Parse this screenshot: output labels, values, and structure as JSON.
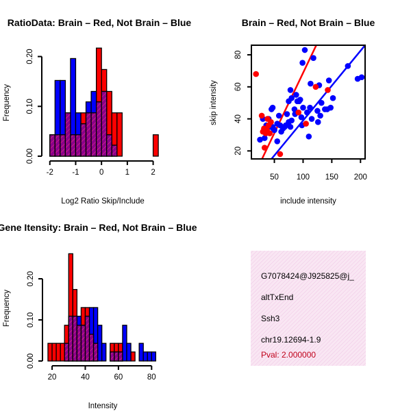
{
  "chart_data": [
    {
      "id": "ratio_hist",
      "type": "bar",
      "title": "RatioData: Brain – Red, Not Brain – Blue",
      "xlabel": "Log2 Ratio Skip/Include",
      "ylabel": "Frequency",
      "xlim": [
        -2.1,
        2.25
      ],
      "ylim": [
        0,
        0.22
      ],
      "xticks": [
        -2,
        -1,
        0,
        1,
        2
      ],
      "yticks": [
        0.0,
        0.1,
        0.2
      ],
      "ytick_labels": [
        "0.00",
        "0.10",
        "0.20"
      ],
      "series": [
        {
          "name": "Brain",
          "color": "#ff0000",
          "bins": [
            {
              "x0": -2.0,
              "x1": -1.8,
              "value": 0.043
            },
            {
              "x0": -1.8,
              "x1": -1.6,
              "value": 0.043
            },
            {
              "x0": -1.6,
              "x1": -1.4,
              "value": 0.043
            },
            {
              "x0": -1.4,
              "x1": -1.2,
              "value": 0.087
            },
            {
              "x0": -1.2,
              "x1": -1.0,
              "value": 0.043
            },
            {
              "x0": -1.0,
              "x1": -0.8,
              "value": 0.043
            },
            {
              "x0": -0.8,
              "x1": -0.6,
              "value": 0.087
            },
            {
              "x0": -0.6,
              "x1": -0.4,
              "value": 0.087
            },
            {
              "x0": -0.4,
              "x1": -0.2,
              "value": 0.087
            },
            {
              "x0": -0.2,
              "x1": 0.0,
              "value": 0.217
            },
            {
              "x0": 0.0,
              "x1": 0.2,
              "value": 0.174
            },
            {
              "x0": 0.2,
              "x1": 0.4,
              "value": 0.13
            },
            {
              "x0": 0.4,
              "x1": 0.6,
              "value": 0.087
            },
            {
              "x0": 0.6,
              "x1": 0.8,
              "value": 0.087
            },
            {
              "x0": 2.0,
              "x1": 2.2,
              "value": 0.043
            }
          ]
        },
        {
          "name": "Not Brain",
          "color": "#0000ff",
          "bins": [
            {
              "x0": -2.0,
              "x1": -1.8,
              "value": 0.043
            },
            {
              "x0": -1.8,
              "x1": -1.6,
              "value": 0.152
            },
            {
              "x0": -1.6,
              "x1": -1.4,
              "value": 0.152
            },
            {
              "x0": -1.4,
              "x1": -1.2,
              "value": 0.087
            },
            {
              "x0": -1.2,
              "x1": -1.0,
              "value": 0.196
            },
            {
              "x0": -1.0,
              "x1": -0.8,
              "value": 0.087
            },
            {
              "x0": -0.8,
              "x1": -0.6,
              "value": 0.065
            },
            {
              "x0": -0.6,
              "x1": -0.4,
              "value": 0.109
            },
            {
              "x0": -0.4,
              "x1": -0.2,
              "value": 0.13
            },
            {
              "x0": -0.2,
              "x1": 0.0,
              "value": 0.109
            },
            {
              "x0": 0.0,
              "x1": 0.2,
              "value": 0.13
            },
            {
              "x0": 0.2,
              "x1": 0.4,
              "value": 0.043
            },
            {
              "x0": 0.4,
              "x1": 0.6,
              "value": 0.022
            },
            {
              "x0": 0.6,
              "x1": 0.8,
              "value": 0.0
            }
          ]
        }
      ]
    },
    {
      "id": "intensity_scatter",
      "type": "scatter",
      "title": "Brain – Red, Not Brain – Blue",
      "xlabel": "include intensity",
      "ylabel": "skip intensity",
      "xlim": [
        10,
        208
      ],
      "ylim": [
        15,
        86
      ],
      "xticks": [
        50,
        100,
        150,
        200
      ],
      "yticks": [
        20,
        40,
        60,
        80
      ],
      "series": [
        {
          "name": "Brain",
          "color": "#ff0000",
          "points": [
            [
              18,
              68
            ],
            [
              28,
              42
            ],
            [
              30,
              32
            ],
            [
              32,
              34
            ],
            [
              33,
              22
            ],
            [
              35,
              31
            ],
            [
              37,
              33
            ],
            [
              38,
              40
            ],
            [
              40,
              36
            ],
            [
              42,
              31
            ],
            [
              44,
              38
            ],
            [
              60,
              18
            ],
            [
              92,
              44
            ],
            [
              105,
              37
            ],
            [
              122,
              60
            ],
            [
              143,
              58
            ]
          ],
          "fit": {
            "x0": 28.5,
            "y0": 15,
            "x1": 123,
            "y1": 86
          }
        },
        {
          "name": "Not Brain",
          "color": "#0000ff",
          "points": [
            [
              25,
              27
            ],
            [
              30,
              40
            ],
            [
              33,
              28
            ],
            [
              35,
              31
            ],
            [
              36,
              36
            ],
            [
              40,
              40
            ],
            [
              42,
              35
            ],
            [
              45,
              46
            ],
            [
              47,
              47
            ],
            [
              47,
              35
            ],
            [
              48,
              34
            ],
            [
              50,
              33
            ],
            [
              55,
              26
            ],
            [
              55,
              37
            ],
            [
              58,
              42
            ],
            [
              60,
              36
            ],
            [
              62,
              32
            ],
            [
              65,
              34
            ],
            [
              68,
              35
            ],
            [
              70,
              36
            ],
            [
              72,
              43
            ],
            [
              75,
              38
            ],
            [
              75,
              51
            ],
            [
              78,
              35
            ],
            [
              78,
              58
            ],
            [
              80,
              39
            ],
            [
              80,
              53
            ],
            [
              85,
              46
            ],
            [
              86,
              43
            ],
            [
              88,
              55
            ],
            [
              90,
              51
            ],
            [
              93,
              51
            ],
            [
              95,
              52
            ],
            [
              97,
              41
            ],
            [
              98,
              36
            ],
            [
              99,
              75
            ],
            [
              100,
              47
            ],
            [
              103,
              83
            ],
            [
              107,
              44
            ],
            [
              110,
              29
            ],
            [
              112,
              47
            ],
            [
              113,
              62
            ],
            [
              115,
              40
            ],
            [
              118,
              78
            ],
            [
              125,
              45
            ],
            [
              126,
              38
            ],
            [
              128,
              61
            ],
            [
              130,
              42
            ],
            [
              132,
              50
            ],
            [
              138,
              46
            ],
            [
              142,
              46
            ],
            [
              145,
              64
            ],
            [
              148,
              47
            ],
            [
              152,
              53
            ],
            [
              178,
              73
            ],
            [
              195,
              65
            ],
            [
              202,
              66
            ]
          ],
          "fit": {
            "x0": 45,
            "y0": 15,
            "x1": 208,
            "y1": 86
          }
        }
      ]
    },
    {
      "id": "intensity_hist",
      "type": "bar",
      "title": "Gene Itensity: Brain – Red, Not Brain – Blue",
      "xlabel": "Intensity",
      "ylabel": "Frequency",
      "xlim": [
        17.5,
        84
      ],
      "ylim": [
        0,
        0.26
      ],
      "xticks": [
        20,
        40,
        60,
        80
      ],
      "yticks": [
        0.0,
        0.1,
        0.2
      ],
      "ytick_labels": [
        "0.00",
        "0.10",
        "0.20"
      ],
      "series": [
        {
          "name": "Brain",
          "color": "#ff0000",
          "bins": [
            {
              "x0": 17.5,
              "x1": 20,
              "value": 0.043
            },
            {
              "x0": 20,
              "x1": 22.5,
              "value": 0.043
            },
            {
              "x0": 22.5,
              "x1": 25,
              "value": 0.043
            },
            {
              "x0": 25,
              "x1": 27.5,
              "value": 0.043
            },
            {
              "x0": 27.5,
              "x1": 30,
              "value": 0.087
            },
            {
              "x0": 30,
              "x1": 32.5,
              "value": 0.261
            },
            {
              "x0": 32.5,
              "x1": 35,
              "value": 0.174
            },
            {
              "x0": 35,
              "x1": 37.5,
              "value": 0.087
            },
            {
              "x0": 37.5,
              "x1": 40,
              "value": 0.13
            },
            {
              "x0": 40,
              "x1": 42.5,
              "value": 0.13
            },
            {
              "x0": 42.5,
              "x1": 45,
              "value": 0.065
            },
            {
              "x0": 45,
              "x1": 47.5,
              "value": 0.043
            },
            {
              "x0": 55,
              "x1": 57.5,
              "value": 0.043
            },
            {
              "x0": 57.5,
              "x1": 60,
              "value": 0.043
            },
            {
              "x0": 60,
              "x1": 62.5,
              "value": 0.043
            },
            {
              "x0": 67.5,
              "x1": 70,
              "value": 0.022
            }
          ]
        },
        {
          "name": "Not Brain",
          "color": "#0000ff",
          "bins": [
            {
              "x0": 17.5,
              "x1": 20,
              "value": 0.0
            },
            {
              "x0": 20,
              "x1": 22.5,
              "value": 0.0
            },
            {
              "x0": 22.5,
              "x1": 25,
              "value": 0.0
            },
            {
              "x0": 25,
              "x1": 27.5,
              "value": 0.0
            },
            {
              "x0": 27.5,
              "x1": 30,
              "value": 0.043
            },
            {
              "x0": 30,
              "x1": 32.5,
              "value": 0.109
            },
            {
              "x0": 32.5,
              "x1": 35,
              "value": 0.109
            },
            {
              "x0": 35,
              "x1": 37.5,
              "value": 0.109
            },
            {
              "x0": 37.5,
              "x1": 40,
              "value": 0.087
            },
            {
              "x0": 40,
              "x1": 42.5,
              "value": 0.109
            },
            {
              "x0": 42.5,
              "x1": 45,
              "value": 0.13
            },
            {
              "x0": 45,
              "x1": 47.5,
              "value": 0.13
            },
            {
              "x0": 47.5,
              "x1": 50,
              "value": 0.087
            },
            {
              "x0": 50,
              "x1": 52.5,
              "value": 0.043
            },
            {
              "x0": 55,
              "x1": 57.5,
              "value": 0.022
            },
            {
              "x0": 57.5,
              "x1": 60,
              "value": 0.022
            },
            {
              "x0": 60,
              "x1": 62.5,
              "value": 0.022
            },
            {
              "x0": 62.5,
              "x1": 65,
              "value": 0.087
            },
            {
              "x0": 65,
              "x1": 67.5,
              "value": 0.043
            },
            {
              "x0": 72.5,
              "x1": 75,
              "value": 0.043
            },
            {
              "x0": 75,
              "x1": 77.5,
              "value": 0.022
            },
            {
              "x0": 77.5,
              "x1": 80,
              "value": 0.022
            },
            {
              "x0": 80,
              "x1": 82.5,
              "value": 0.022
            }
          ]
        }
      ]
    }
  ],
  "info_box": {
    "background": "#f7dff0",
    "lines": [
      {
        "text": "G7078424@J925825@j_",
        "color": "#000000"
      },
      {
        "text": "altTxEnd",
        "color": "#000000"
      },
      {
        "text": "Ssh3",
        "color": "#000000"
      },
      {
        "text": "chr19.12694-1.9",
        "color": "#000000"
      },
      {
        "text": "Pval: 2.000000",
        "color": "#c0001a"
      }
    ]
  },
  "colors": {
    "brain": "#ff0000",
    "not_brain": "#0000ff",
    "overlap": "#8b008b"
  }
}
